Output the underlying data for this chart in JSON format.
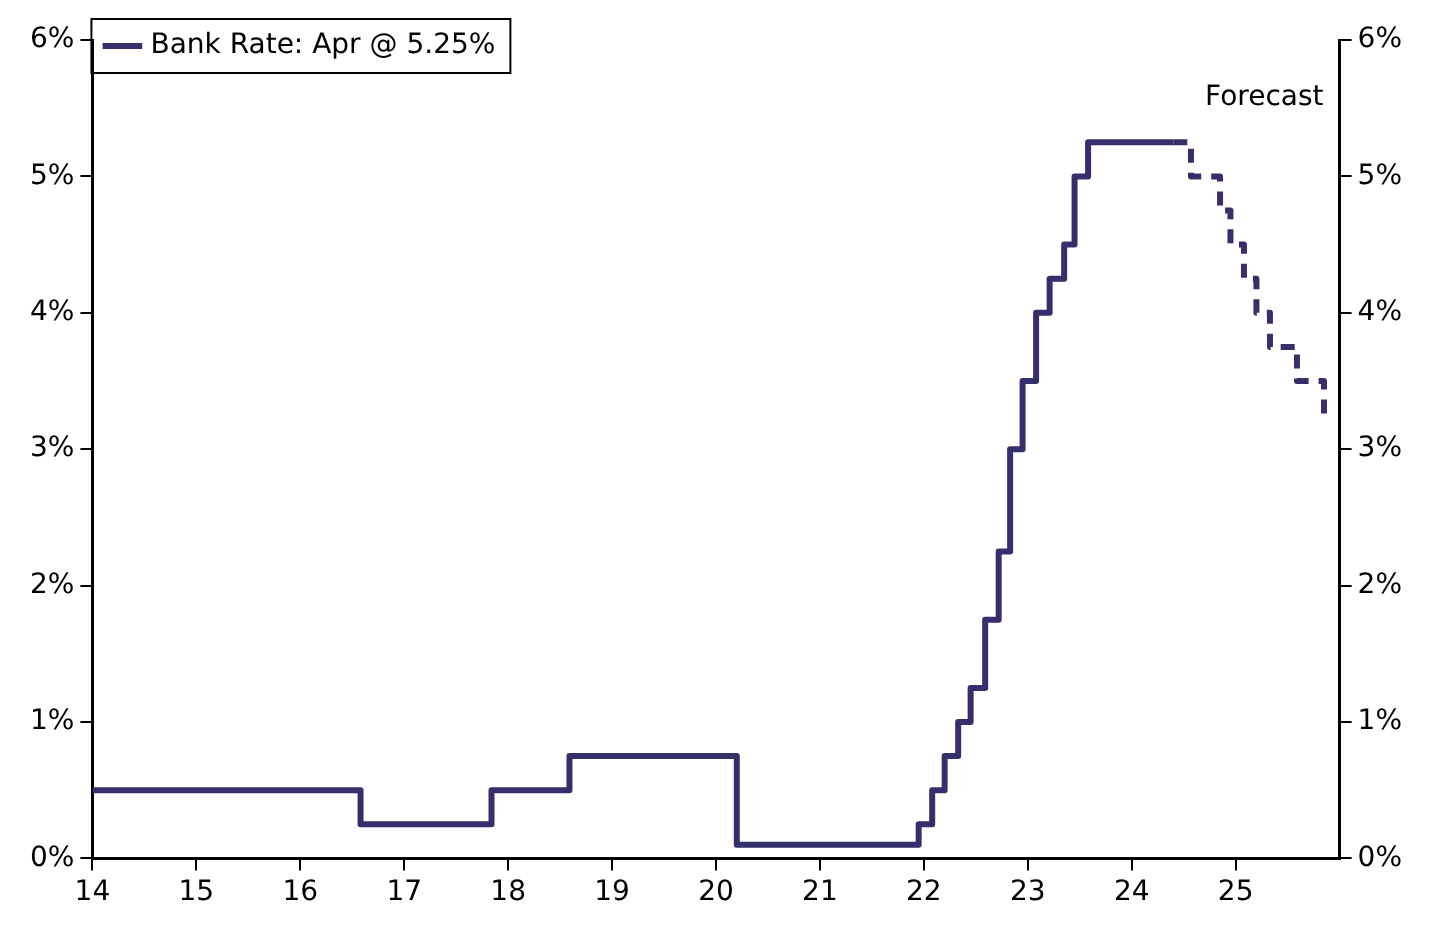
{
  "chart_data": {
    "type": "step",
    "xlim": [
      14,
      26
    ],
    "xticks": [
      14,
      15,
      16,
      17,
      18,
      19,
      20,
      21,
      22,
      23,
      24,
      25
    ],
    "ylim": [
      0,
      6
    ],
    "yticks": [
      {
        "value": 0,
        "label": "0%"
      },
      {
        "value": 1,
        "label": "1%"
      },
      {
        "value": 2,
        "label": "2%"
      },
      {
        "value": 3,
        "label": "3%"
      },
      {
        "value": 4,
        "label": "4%"
      },
      {
        "value": 5,
        "label": "5%"
      },
      {
        "value": 6,
        "label": "6%"
      }
    ],
    "y2lim": [
      0,
      6
    ],
    "y2ticks": [
      {
        "value": 0,
        "label": "0%"
      },
      {
        "value": 1,
        "label": "1%"
      },
      {
        "value": 2,
        "label": "2%"
      },
      {
        "value": 3,
        "label": "3%"
      },
      {
        "value": 4,
        "label": "4%"
      },
      {
        "value": 5,
        "label": "5%"
      },
      {
        "value": 6,
        "label": "6%"
      }
    ],
    "series": [
      {
        "name": "Bank Rate: Apr @ 5.25%",
        "color": "#352f6b",
        "line_style": "solid",
        "x": [
          14,
          16.58,
          17.84,
          18.59,
          20.2,
          21.95,
          22.08,
          22.2,
          22.33,
          22.45,
          22.59,
          22.72,
          22.83,
          22.95,
          23.08,
          23.21,
          23.35,
          23.45,
          23.58,
          24.4
        ],
        "values": [
          0.5,
          0.25,
          0.5,
          0.75,
          0.1,
          0.25,
          0.5,
          0.75,
          1.0,
          1.25,
          1.75,
          2.25,
          3.0,
          3.5,
          4.0,
          4.25,
          4.5,
          5.0,
          5.25,
          5.25
        ]
      },
      {
        "color": "#352f6b",
        "line_style": "dashed",
        "x": [
          24.4,
          24.57,
          24.85,
          24.95,
          25.08,
          25.2,
          25.33,
          25.59,
          25.85,
          25.93
        ],
        "values": [
          5.25,
          5.0,
          4.75,
          4.5,
          4.25,
          4.0,
          3.75,
          3.5,
          3.25,
          3.25
        ]
      }
    ],
    "annotations": [
      "Forecast"
    ],
    "grid": false,
    "legend": "top left",
    "marker": "none"
  }
}
